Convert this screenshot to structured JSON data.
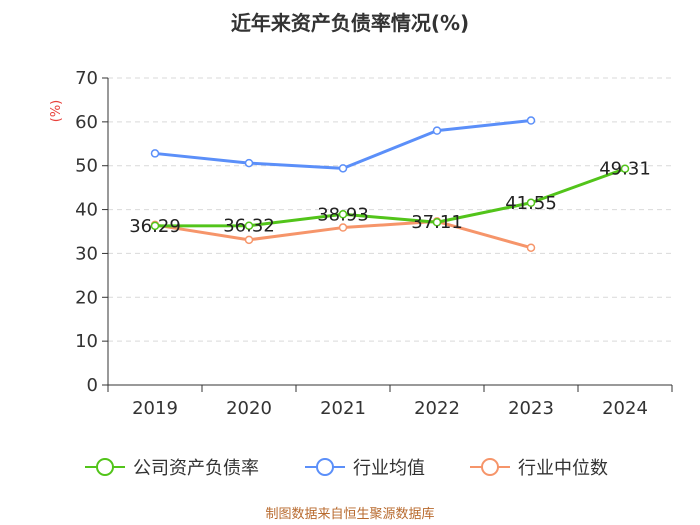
{
  "chart_data": {
    "type": "line",
    "title": "近年来资产负债率情况(%)",
    "ylabel": "(%)",
    "xlabel": "",
    "categories": [
      "2019",
      "2020",
      "2021",
      "2022",
      "2023",
      "2024"
    ],
    "ylim": [
      0,
      70
    ],
    "yticks": [
      0,
      10,
      20,
      30,
      40,
      50,
      60,
      70
    ],
    "grid": true,
    "legend_position": "bottom",
    "series": [
      {
        "name": "公司资产负债率",
        "color": "#52c41a",
        "values": [
          36.29,
          36.32,
          38.93,
          37.11,
          41.55,
          49.31
        ],
        "data_labels": [
          "36.29",
          "36.32",
          "38.93",
          "37.11",
          "41.55",
          "49.31"
        ]
      },
      {
        "name": "行业均值",
        "color": "#5b8ff9",
        "values": [
          52.8,
          50.6,
          49.4,
          58.0,
          60.3,
          null
        ]
      },
      {
        "name": "行业中位数",
        "color": "#f6956a",
        "values": [
          36.5,
          33.1,
          35.9,
          37.3,
          31.3,
          null
        ]
      }
    ],
    "source": "制图数据来自恒生聚源数据库"
  }
}
